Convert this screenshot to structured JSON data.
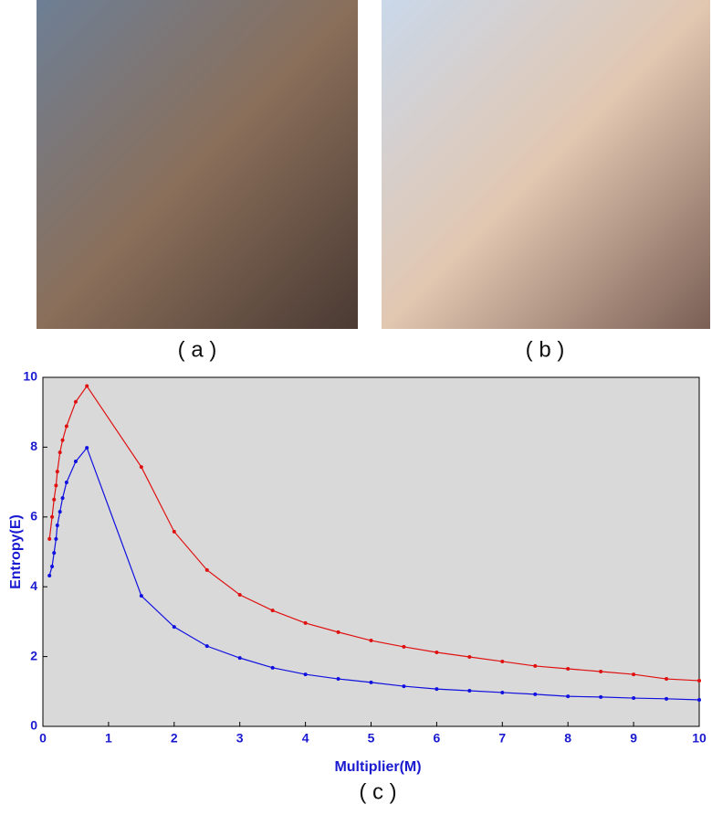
{
  "figure": {
    "panel_labels": [
      "( a )",
      "( b )",
      "( c )"
    ]
  },
  "chart_data": {
    "type": "line",
    "x_label": "Multiplier(M)",
    "y_label": "Entropy(E)",
    "x": [
      0.1,
      0.14,
      0.17,
      0.2,
      0.22,
      0.26,
      0.3,
      0.36,
      0.5,
      0.67,
      1.5,
      2,
      2.5,
      3,
      3.5,
      4,
      4.5,
      5,
      5.5,
      6,
      6.5,
      7,
      7.5,
      8,
      8.5,
      9,
      9.5,
      10
    ],
    "series": [
      {
        "color": "#e01010",
        "values": [
          5.37,
          6.0,
          6.5,
          6.9,
          7.3,
          7.85,
          8.2,
          8.6,
          9.3,
          9.75,
          7.43,
          5.58,
          4.48,
          3.77,
          3.32,
          2.96,
          2.7,
          2.46,
          2.28,
          2.12,
          1.99,
          1.86,
          1.73,
          1.65,
          1.57,
          1.49,
          1.36,
          1.31
        ]
      },
      {
        "color": "#1010e0",
        "values": [
          4.32,
          4.58,
          4.97,
          5.37,
          5.76,
          6.15,
          6.54,
          6.99,
          7.59,
          7.98,
          3.74,
          2.85,
          2.3,
          1.96,
          1.68,
          1.49,
          1.36,
          1.26,
          1.15,
          1.07,
          1.02,
          0.97,
          0.92,
          0.86,
          0.84,
          0.81,
          0.79,
          0.76
        ]
      }
    ],
    "xlim": [
      0,
      10
    ],
    "ylim": [
      0,
      10
    ],
    "xticks": [
      0,
      1,
      2,
      3,
      4,
      5,
      6,
      7,
      8,
      9,
      10
    ],
    "yticks": [
      0,
      2,
      4,
      6,
      8,
      10
    ],
    "background": "#d9d9d9"
  }
}
